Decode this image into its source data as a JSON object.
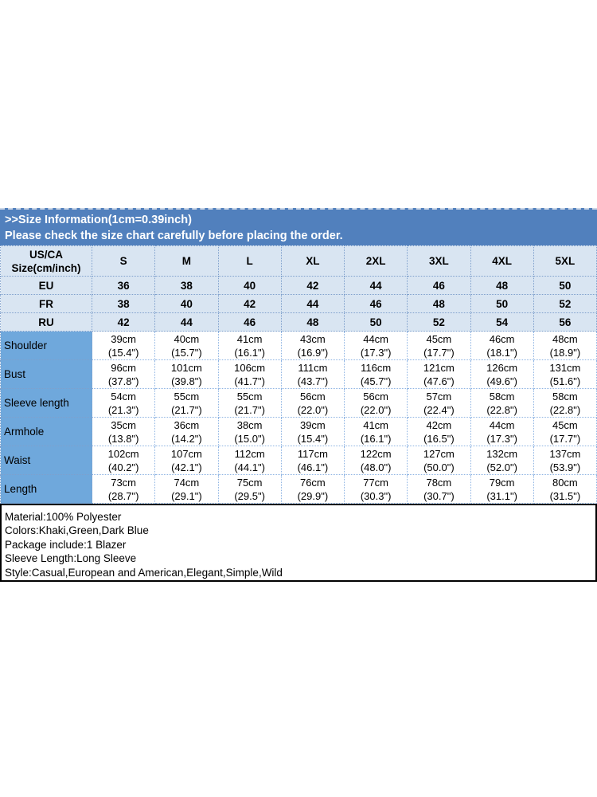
{
  "banner": {
    "title": ">>Size Information(1cm=0.39inch)",
    "subtitle": "Please check the size chart carefully before placing the order."
  },
  "table": {
    "corner_lines": [
      "US/CA",
      "Size(cm/inch)"
    ],
    "sizes": [
      "S",
      "M",
      "L",
      "XL",
      "2XL",
      "3XL",
      "4XL",
      "5XL"
    ],
    "regions": [
      {
        "label": "EU",
        "values": [
          "36",
          "38",
          "40",
          "42",
          "44",
          "46",
          "48",
          "50"
        ]
      },
      {
        "label": "FR",
        "values": [
          "38",
          "40",
          "42",
          "44",
          "46",
          "48",
          "50",
          "52"
        ]
      },
      {
        "label": "RU",
        "values": [
          "42",
          "44",
          "46",
          "48",
          "50",
          "52",
          "54",
          "56"
        ]
      }
    ],
    "measurements": [
      {
        "label": "Shoulder",
        "cm": [
          "39cm",
          "40cm",
          "41cm",
          "43cm",
          "44cm",
          "45cm",
          "46cm",
          "48cm"
        ],
        "inch": [
          "(15.4\")",
          "(15.7\")",
          "(16.1\")",
          "(16.9\")",
          "(17.3\")",
          "(17.7\")",
          "(18.1\")",
          "(18.9\")"
        ]
      },
      {
        "label": "Bust",
        "cm": [
          "96cm",
          "101cm",
          "106cm",
          "111cm",
          "116cm",
          "121cm",
          "126cm",
          "131cm"
        ],
        "inch": [
          "(37.8\")",
          "(39.8\")",
          "(41.7\")",
          "(43.7\")",
          "(45.7\")",
          "(47.6\")",
          "(49.6\")",
          "(51.6\")"
        ]
      },
      {
        "label": "Sleeve length",
        "cm": [
          "54cm",
          "55cm",
          "55cm",
          "56cm",
          "56cm",
          "57cm",
          "58cm",
          "58cm"
        ],
        "inch": [
          "(21.3\")",
          "(21.7\")",
          "(21.7\")",
          "(22.0\")",
          "(22.0\")",
          "(22.4\")",
          "(22.8\")",
          "(22.8\")"
        ]
      },
      {
        "label": "Armhole",
        "cm": [
          "35cm",
          "36cm",
          "38cm",
          "39cm",
          "41cm",
          "42cm",
          "44cm",
          "45cm"
        ],
        "inch": [
          "(13.8\")",
          "(14.2\")",
          "(15.0\")",
          "(15.4\")",
          "(16.1\")",
          "(16.5\")",
          "(17.3\")",
          "(17.7\")"
        ]
      },
      {
        "label": "Waist",
        "cm": [
          "102cm",
          "107cm",
          "112cm",
          "117cm",
          "122cm",
          "127cm",
          "132cm",
          "137cm"
        ],
        "inch": [
          "(40.2\")",
          "(42.1\")",
          "(44.1\")",
          "(46.1\")",
          "(48.0\")",
          "(50.0\")",
          "(52.0\")",
          "(53.9\")"
        ]
      },
      {
        "label": "Length",
        "cm": [
          "73cm",
          "74cm",
          "75cm",
          "76cm",
          "77cm",
          "78cm",
          "79cm",
          "80cm"
        ],
        "inch": [
          "(28.7\")",
          "(29.1\")",
          "(29.5\")",
          "(29.9\")",
          "(30.3\")",
          "(30.7\")",
          "(31.1\")",
          "(31.5\")"
        ]
      }
    ]
  },
  "details": {
    "lines": [
      "Material:100% Polyester",
      "Colors:Khaki,Green,Dark Blue",
      "Package include:1 Blazer",
      "Sleeve Length:Long Sleeve",
      "Style:Casual,European and American,Elegant,Simple,Wild"
    ]
  },
  "colors": {
    "banner_bg": "#5180BD",
    "header_cell_bg": "#D9E5F2",
    "measure_label_bg": "#6FA8DC",
    "cell_border": "#8EB4E3",
    "details_border": "#000000"
  }
}
